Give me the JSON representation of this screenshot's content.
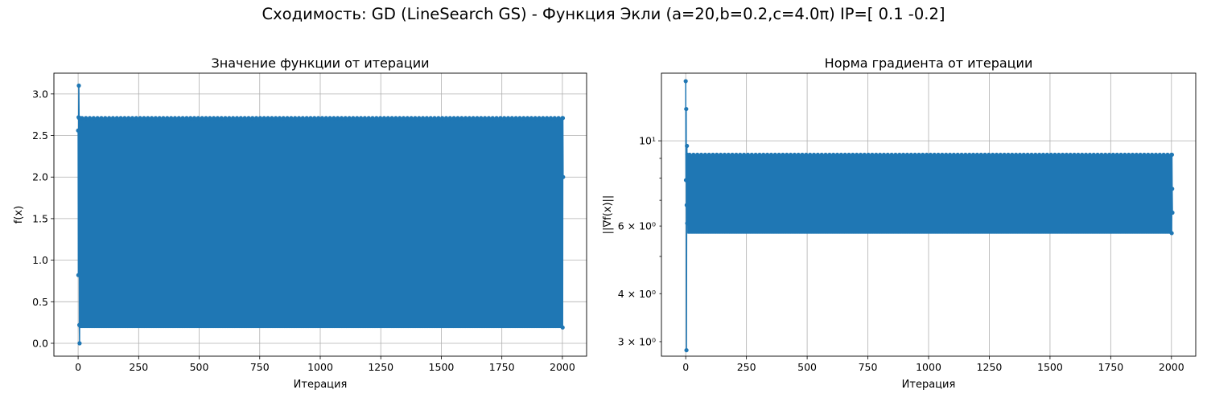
{
  "figure": {
    "suptitle": "Сходимость: GD (LineSearch GS) - Функция Экли (a=20,b=0.2,c=4.0π) IP=[ 0.1 -0.2]"
  },
  "colors": {
    "series": "#1f77b4",
    "grid": "#b0b0b0"
  },
  "chart_data": [
    {
      "type": "line",
      "title": "Значение функции от итерации",
      "xlabel": "Итерация",
      "ylabel": "f(x)",
      "xlim": [
        -100,
        2100
      ],
      "ylim": [
        -0.155,
        3.25
      ],
      "xticks": [
        0,
        250,
        500,
        750,
        1000,
        1250,
        1500,
        1750,
        2000
      ],
      "xtick_labels": [
        "0",
        "250",
        "500",
        "750",
        "1000",
        "1250",
        "1500",
        "1750",
        "2000"
      ],
      "yticks": [
        0.0,
        0.5,
        1.0,
        1.5,
        2.0,
        2.5,
        3.0
      ],
      "ytick_labels": [
        "0.0",
        "0.5",
        "1.0",
        "1.5",
        "2.0",
        "2.5",
        "3.0"
      ],
      "yscale": "linear",
      "grid": true,
      "marker": "circle",
      "series": [
        {
          "initial": [
            [
              0,
              2.56
            ],
            [
              1,
              0.82
            ],
            [
              2,
              2.72
            ],
            [
              3,
              3.1
            ],
            [
              4,
              2.71
            ],
            [
              5,
              0.22
            ],
            [
              6,
              0.0
            ],
            [
              7,
              2.71
            ]
          ],
          "oscillation": {
            "x_start": 8,
            "x_end": 2000,
            "high": 2.71,
            "low": 0.19
          },
          "final": [
            [
              2001,
              0.19
            ],
            [
              2002,
              2.71
            ],
            [
              2003,
              2.0
            ]
          ]
        }
      ]
    },
    {
      "type": "line",
      "title": "Норма градиента от итерации",
      "xlabel": "Итерация",
      "ylabel": "||∇f(x)||",
      "xlim": [
        -100,
        2100
      ],
      "ylim": [
        2.75,
        15.0
      ],
      "xticks": [
        0,
        250,
        500,
        750,
        1000,
        1250,
        1500,
        1750,
        2000
      ],
      "xtick_labels": [
        "0",
        "250",
        "500",
        "750",
        "1000",
        "1250",
        "1500",
        "1750",
        "2000"
      ],
      "yticks": [
        3,
        4,
        6,
        10
      ],
      "ytick_labels": [
        "3 × 10⁰",
        "4 × 10⁰",
        "6 × 10⁰",
        "10¹"
      ],
      "yticks_major": [
        10
      ],
      "yscale": "log",
      "grid": true,
      "marker": "circle",
      "series": [
        {
          "initial": [
            [
              0,
              14.3
            ],
            [
              1,
              7.9
            ],
            [
              2,
              12.1
            ],
            [
              3,
              2.85
            ],
            [
              4,
              6.8
            ],
            [
              5,
              9.7
            ],
            [
              6,
              6.1
            ],
            [
              7,
              9.2
            ]
          ],
          "oscillation": {
            "x_start": 8,
            "x_end": 2000,
            "high": 9.2,
            "low": 5.75
          },
          "final": [
            [
              2001,
              5.75
            ],
            [
              2002,
              9.2
            ],
            [
              2003,
              7.5
            ],
            [
              2004,
              6.5
            ]
          ]
        }
      ]
    }
  ]
}
